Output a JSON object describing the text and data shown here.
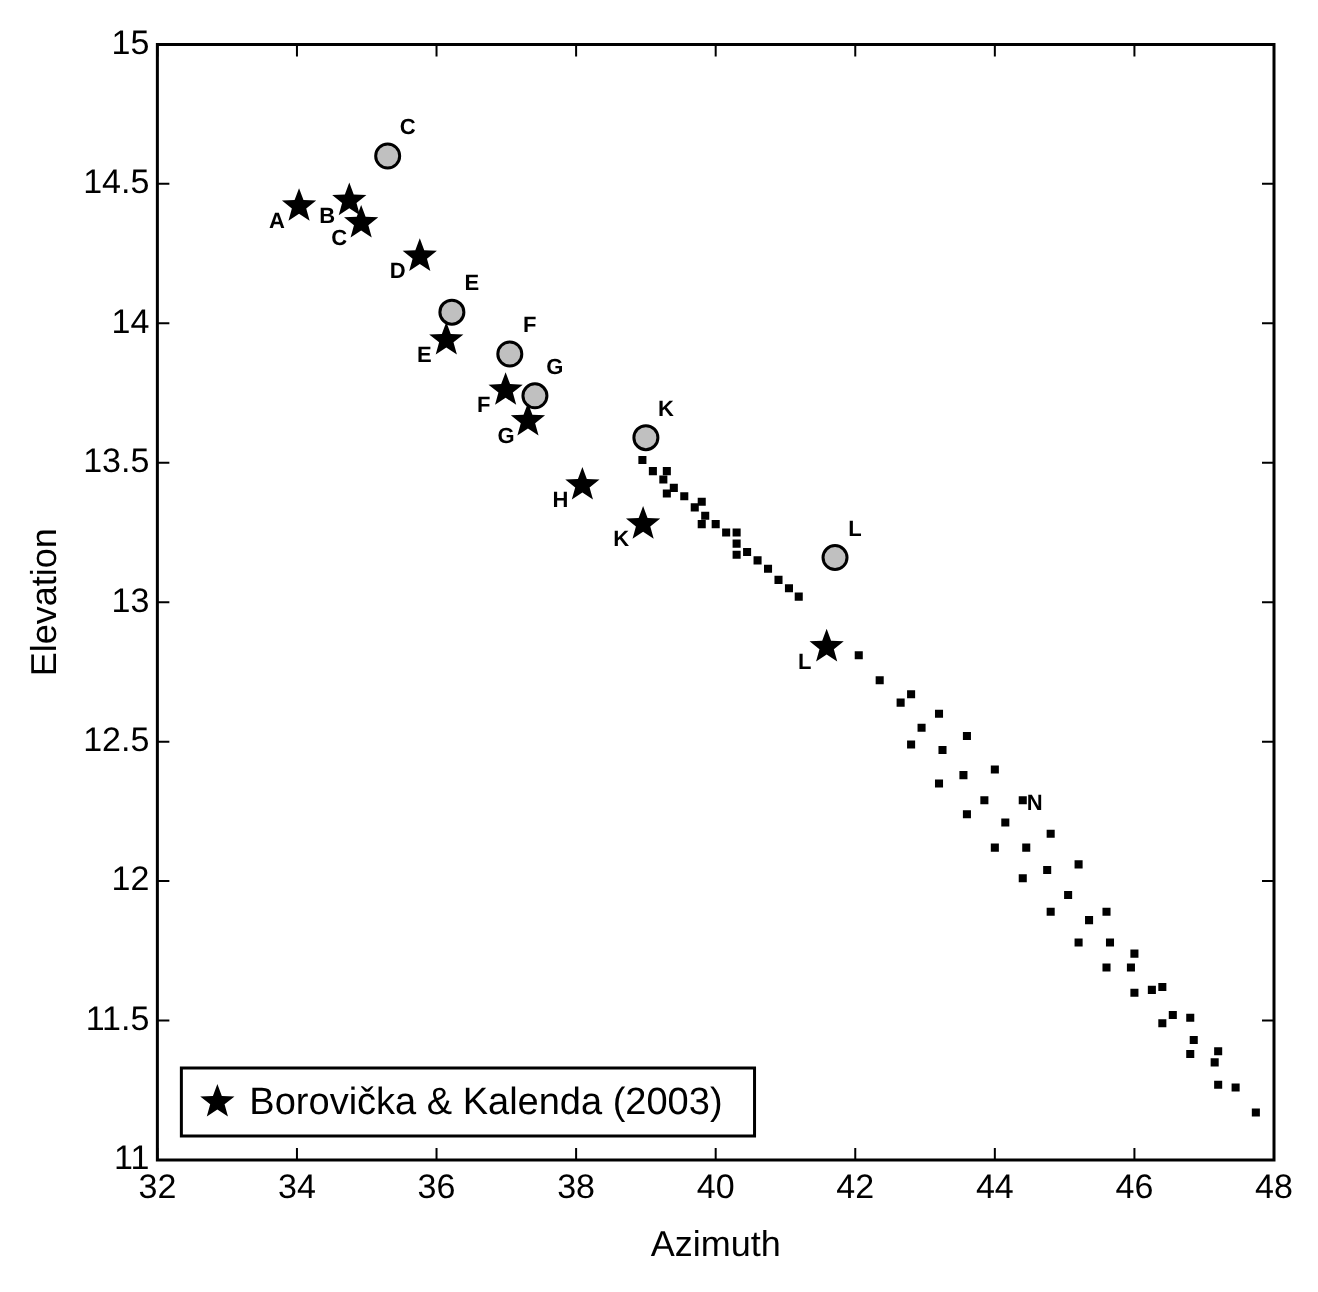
{
  "chart_data": {
    "type": "scatter",
    "xlabel": "Azimuth",
    "ylabel": "Elevation",
    "xlim": [
      32,
      48
    ],
    "ylim": [
      11,
      15
    ],
    "xticks": [
      32,
      34,
      36,
      38,
      40,
      42,
      44,
      46,
      48
    ],
    "yticks": [
      11,
      11.5,
      12,
      12.5,
      13,
      13.5,
      14,
      14.5,
      15
    ],
    "grid": false,
    "legend": "bottom left",
    "series": [
      {
        "name": "Borovička & Kalenda (2003)",
        "color": "#000000",
        "marker": "star",
        "x": [
          34.03,
          34.75,
          34.92,
          35.76,
          36.14,
          36.99,
          37.31,
          38.09,
          38.96,
          41.59
        ],
        "values": [
          14.42,
          14.44,
          14.36,
          14.24,
          13.94,
          13.76,
          13.65,
          13.42,
          13.28,
          12.84
        ]
      },
      {
        "color": "#c0c0c0",
        "marker": "circle",
        "x": [
          35.3,
          36.22,
          37.05,
          37.41,
          39.0,
          41.71
        ],
        "values": [
          14.6,
          14.04,
          13.89,
          13.74,
          13.59,
          13.16
        ]
      },
      {
        "color": "#000000",
        "marker": "square",
        "x": [
          38.95,
          39.1,
          39.25,
          39.3,
          39.3,
          39.4,
          39.55,
          39.7,
          39.8,
          39.8,
          39.85,
          40.0,
          40.15,
          40.3,
          40.3,
          40.3,
          40.45,
          40.6,
          40.75,
          40.9,
          41.05,
          41.19,
          42.05,
          42.35,
          42.65,
          42.95,
          43.25,
          43.55,
          43.85,
          44.15,
          44.45,
          44.75,
          45.05,
          45.35,
          45.65,
          45.95,
          46.25,
          46.55,
          46.85,
          47.15,
          47.45,
          47.74,
          42.8,
          43.2,
          43.6,
          44.0,
          44.4,
          44.8,
          45.2,
          45.6,
          46.0,
          46.4,
          46.8,
          47.2,
          42.8,
          43.2,
          43.6,
          44.0,
          44.4,
          44.8,
          45.2,
          45.6,
          46.0,
          46.4,
          46.8,
          47.2
        ],
        "values": [
          13.51,
          13.47,
          13.44,
          13.47,
          13.39,
          13.41,
          13.38,
          13.34,
          13.36,
          13.28,
          13.31,
          13.28,
          13.25,
          13.21,
          13.25,
          13.17,
          13.18,
          13.15,
          13.12,
          13.08,
          13.05,
          13.02,
          12.81,
          12.72,
          12.64,
          12.55,
          12.47,
          12.38,
          12.29,
          12.21,
          12.12,
          12.04,
          11.95,
          11.86,
          11.78,
          11.69,
          11.61,
          11.52,
          11.43,
          11.35,
          11.26,
          11.17,
          12.67,
          12.6,
          12.52,
          12.4,
          12.29,
          12.17,
          12.06,
          11.89,
          11.74,
          11.62,
          11.51,
          11.39,
          12.49,
          12.35,
          12.24,
          12.12,
          12.01,
          11.89,
          11.78,
          11.69,
          11.6,
          11.49,
          11.38,
          11.27
        ]
      }
    ],
    "annotations": [
      {
        "text": "A",
        "x": 34.03,
        "y": 14.42
      },
      {
        "text": "B",
        "x": 34.75,
        "y": 14.44
      },
      {
        "text": "C",
        "x": 34.92,
        "y": 14.36
      },
      {
        "text": "D",
        "x": 35.76,
        "y": 14.24
      },
      {
        "text": "E",
        "x": 36.14,
        "y": 13.94
      },
      {
        "text": "F",
        "x": 36.99,
        "y": 13.76
      },
      {
        "text": "G",
        "x": 37.31,
        "y": 13.65
      },
      {
        "text": "H",
        "x": 38.09,
        "y": 13.42
      },
      {
        "text": "K",
        "x": 38.96,
        "y": 13.28
      },
      {
        "text": "L",
        "x": 41.59,
        "y": 12.84
      },
      {
        "text": "C",
        "x": 35.3,
        "y": 14.6
      },
      {
        "text": "E",
        "x": 36.22,
        "y": 14.04
      },
      {
        "text": "F",
        "x": 37.05,
        "y": 13.89
      },
      {
        "text": "G",
        "x": 37.41,
        "y": 13.74
      },
      {
        "text": "K",
        "x": 39.0,
        "y": 13.59
      },
      {
        "text": "L",
        "x": 41.71,
        "y": 13.16
      },
      {
        "text": "N",
        "x": 44.4,
        "y": 12.29
      }
    ]
  }
}
